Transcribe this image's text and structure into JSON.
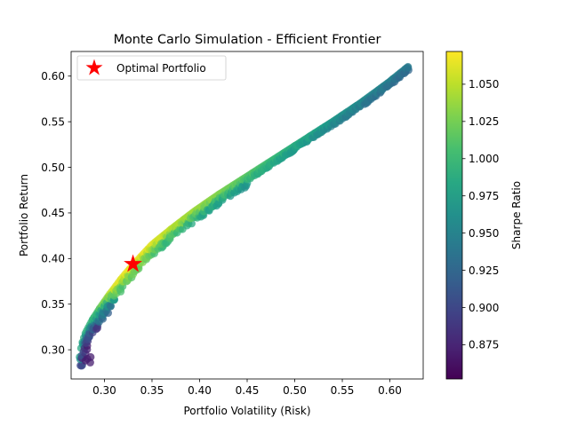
{
  "chart_data": {
    "type": "scatter",
    "title": "Monte Carlo Simulation - Efficient Frontier",
    "xlabel": "Portfolio Volatility (Risk)",
    "ylabel": "Portfolio Return",
    "xlim": [
      0.265,
      0.635
    ],
    "ylim": [
      0.268,
      0.627
    ],
    "x_ticks": [
      0.3,
      0.35,
      0.4,
      0.45,
      0.5,
      0.55,
      0.6
    ],
    "x_tick_labels": [
      "0.30",
      "0.35",
      "0.40",
      "0.45",
      "0.50",
      "0.55",
      "0.60"
    ],
    "y_ticks": [
      0.3,
      0.35,
      0.4,
      0.45,
      0.5,
      0.55,
      0.6
    ],
    "y_tick_labels": [
      "0.30",
      "0.35",
      "0.40",
      "0.45",
      "0.50",
      "0.55",
      "0.60"
    ],
    "grid": false,
    "colormap": "viridis",
    "point_alpha": 0.75,
    "frontier_curve": {
      "x": [
        0.274,
        0.276,
        0.28,
        0.287,
        0.295,
        0.305,
        0.318,
        0.332,
        0.35,
        0.37,
        0.395,
        0.42,
        0.45,
        0.48,
        0.51,
        0.54,
        0.57,
        0.6,
        0.62
      ],
      "y": [
        0.292,
        0.305,
        0.318,
        0.332,
        0.345,
        0.36,
        0.378,
        0.395,
        0.415,
        0.432,
        0.452,
        0.47,
        0.49,
        0.51,
        0.53,
        0.55,
        0.571,
        0.594,
        0.611
      ]
    },
    "colorbar": {
      "label": "Sharpe Ratio",
      "min": 0.852,
      "max": 1.072,
      "ticks": [
        0.875,
        0.9,
        0.925,
        0.95,
        0.975,
        1.0,
        1.025,
        1.05
      ],
      "tick_labels": [
        "0.875",
        "0.900",
        "0.925",
        "0.950",
        "0.975",
        "1.000",
        "1.025",
        "1.050"
      ]
    },
    "optimal_portfolio": {
      "x": 0.33,
      "y": 0.394,
      "color": "#ff0000",
      "marker": "star"
    },
    "legend": {
      "entries": [
        "Optimal Portfolio"
      ],
      "placement": "upper-left"
    }
  }
}
